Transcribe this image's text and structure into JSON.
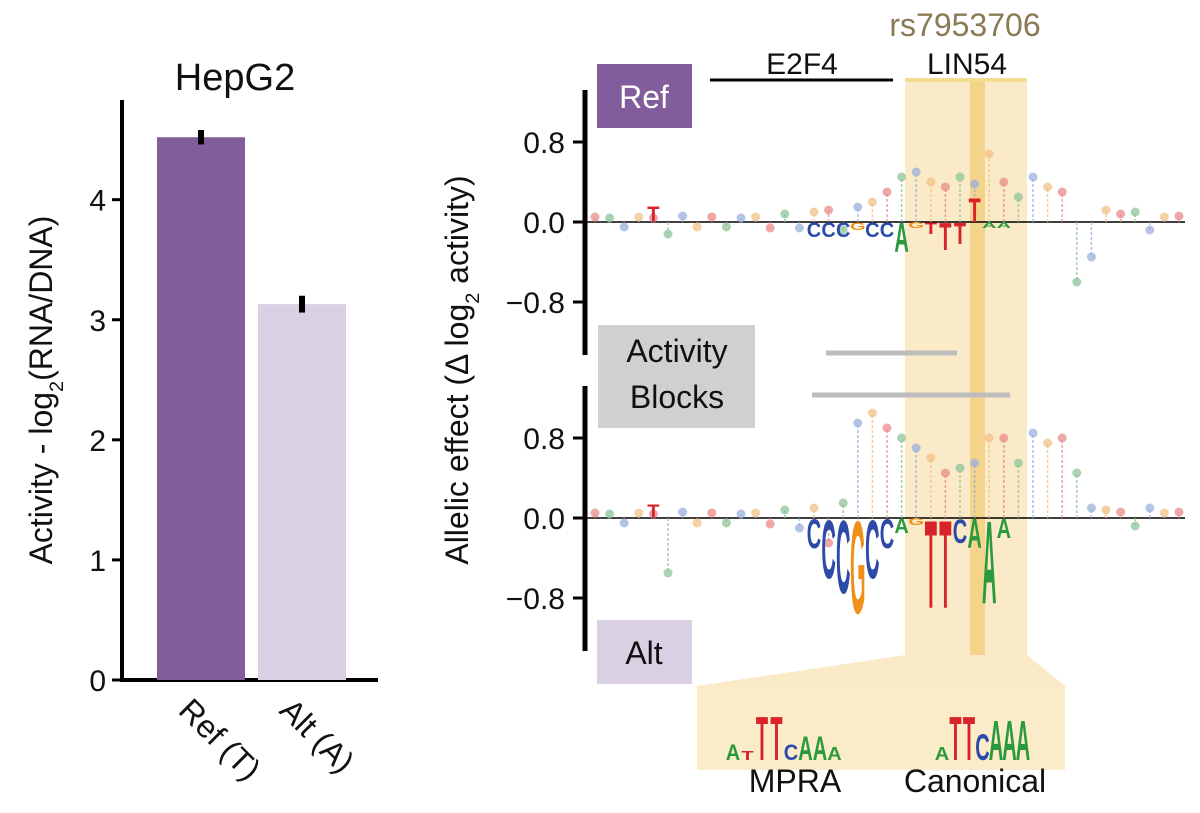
{
  "chart_data": [
    {
      "type": "bar",
      "title": "HepG2",
      "ylabel": [
        "Activity - log",
        "2",
        "(RNA/DNA)"
      ],
      "categories": [
        "Ref (T)",
        "Alt (A)"
      ],
      "values": [
        4.52,
        3.13
      ],
      "errors": [
        0.06,
        0.07
      ],
      "colors": [
        "#825d9c",
        "#dad0e4"
      ],
      "ylim": [
        0,
        4.83
      ],
      "yticks": [
        0,
        1,
        2,
        3,
        4
      ]
    },
    {
      "type": "logo",
      "variant": "rs7953706",
      "motifs_above": [
        "E2F4",
        "LIN54"
      ],
      "ylabel": [
        "Allelic effect (Δ log",
        "2",
        " activity)"
      ],
      "ylim": [
        -1.33,
        1.32
      ],
      "yticks": [
        0.8,
        {
          "value": 0,
          "label": "0.0"
        },
        {
          "value": -0.8,
          "label": "−0.8"
        }
      ],
      "blocks_label": [
        "Activity",
        "Blocks"
      ],
      "letter_colors": {
        "A": "#2a9a3c",
        "C": "#2c4ba8",
        "G": "#f0901a",
        "T": "#d9232b"
      },
      "dot_colors": [
        "#e98b8b",
        "#8fc49a",
        "#9bb0dc",
        "#f2c08a"
      ],
      "tracks": [
        {
          "name": "Ref",
          "lollipops": [
            0.05,
            0.04,
            -0.05,
            0.05,
            0.04,
            -0.12,
            0.06,
            -0.05,
            0.05,
            -0.05,
            0.04,
            0.05,
            -0.06,
            0.08,
            -0.06,
            0.1,
            0.12,
            -0.08,
            0.15,
            0.2,
            0.3,
            0.45,
            0.5,
            0.4,
            0.35,
            0.45,
            0.38,
            0.68,
            0.4,
            0.25,
            0.45,
            0.35,
            0.3,
            -0.6,
            -0.35,
            0.12,
            0.08,
            0.1,
            -0.08,
            0.05,
            0.06
          ],
          "logo": [
            {
              "letter": "T",
              "pos": 4,
              "value": 0.16
            },
            {
              "letter": "C",
              "pos": 15,
              "value": -0.15
            },
            {
              "letter": "C",
              "pos": 16,
              "value": -0.15
            },
            {
              "letter": "C",
              "pos": 17,
              "value": -0.15
            },
            {
              "letter": "G",
              "pos": 18,
              "value": -0.08
            },
            {
              "letter": "C",
              "pos": 19,
              "value": -0.15
            },
            {
              "letter": "C",
              "pos": 20,
              "value": -0.15
            },
            {
              "letter": "A",
              "pos": 21,
              "value": -0.3
            },
            {
              "letter": "G",
              "pos": 22,
              "value": -0.06
            },
            {
              "letter": "T",
              "pos": 23,
              "value": -0.12
            },
            {
              "letter": "T",
              "pos": 24,
              "value": -0.28
            },
            {
              "letter": "T",
              "pos": 25,
              "value": -0.22
            },
            {
              "letter": "T",
              "pos": 26,
              "value": 0.25
            },
            {
              "letter": "A",
              "pos": 27,
              "value": -0.06
            },
            {
              "letter": "A",
              "pos": 28,
              "value": -0.06
            }
          ]
        },
        {
          "name": "Alt",
          "lollipops": [
            0.05,
            0.04,
            -0.05,
            0.05,
            0.04,
            -0.55,
            0.06,
            -0.05,
            0.05,
            -0.05,
            0.04,
            0.05,
            -0.06,
            0.08,
            -0.1,
            0.1,
            -0.25,
            0.15,
            0.95,
            1.05,
            0.9,
            0.8,
            0.7,
            0.6,
            0.45,
            0.5,
            0.55,
            0.8,
            0.8,
            0.55,
            0.85,
            0.75,
            0.8,
            0.45,
            0.1,
            0.08,
            0.06,
            -0.08,
            0.1,
            0.05,
            0.06
          ],
          "logo": [
            {
              "letter": "T",
              "pos": 4,
              "value": 0.14
            },
            {
              "letter": "C",
              "pos": 15,
              "value": -0.3
            },
            {
              "letter": "C",
              "pos": 16,
              "value": -0.6
            },
            {
              "letter": "C",
              "pos": 17,
              "value": -0.75
            },
            {
              "letter": "G",
              "pos": 18,
              "value": -0.95
            },
            {
              "letter": "C",
              "pos": 19,
              "value": -0.6
            },
            {
              "letter": "C",
              "pos": 20,
              "value": -0.3
            },
            {
              "letter": "A",
              "pos": 21,
              "value": -0.15
            },
            {
              "letter": "G",
              "pos": 22,
              "value": -0.07
            },
            {
              "letter": "T",
              "pos": 23,
              "value": -0.9
            },
            {
              "letter": "T",
              "pos": 24,
              "value": -0.9
            },
            {
              "letter": "C",
              "pos": 25,
              "value": -0.25
            },
            {
              "letter": "A",
              "pos": 26,
              "value": -0.3
            },
            {
              "letter": "A",
              "pos": 27,
              "value": -0.85
            },
            {
              "letter": "A",
              "pos": 28,
              "value": -0.2
            }
          ]
        }
      ],
      "motifs": [
        {
          "name": "MPRA",
          "letters": [
            {
              "letter": "A",
              "value": 0.35
            },
            {
              "letter": "T",
              "value": 0.2
            },
            {
              "letter": "T",
              "value": 1.0
            },
            {
              "letter": "T",
              "value": 1.0
            },
            {
              "letter": "C",
              "value": 0.35
            },
            {
              "letter": "A",
              "value": 0.55
            },
            {
              "letter": "A",
              "value": 0.55
            },
            {
              "letter": "A",
              "value": 0.3
            }
          ]
        },
        {
          "name": "Canonical",
          "letters": [
            {
              "letter": "A",
              "value": 0.3
            },
            {
              "letter": "T",
              "value": 1.0
            },
            {
              "letter": "T",
              "value": 1.0
            },
            {
              "letter": "C",
              "value": 0.6
            },
            {
              "letter": "A",
              "value": 0.9
            },
            {
              "letter": "A",
              "value": 0.9
            },
            {
              "letter": "A",
              "value": 0.9
            }
          ]
        }
      ]
    }
  ]
}
